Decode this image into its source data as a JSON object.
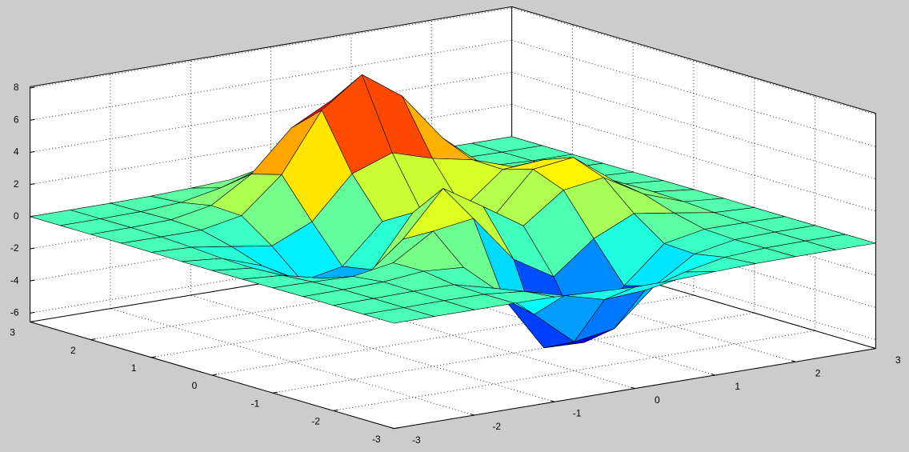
{
  "chart_data": {
    "type": "surface",
    "x": [
      -3,
      -2.5,
      -2,
      -1.5,
      -1,
      -0.5,
      0,
      0.5,
      1,
      1.5,
      2,
      2.5,
      3
    ],
    "y": [
      -3,
      -2.5,
      -2,
      -1.5,
      -1,
      -0.5,
      0,
      0.5,
      1,
      1.5,
      2,
      2.5,
      3
    ],
    "z": [
      [
        0,
        0,
        0,
        0,
        -0.03,
        -0.14,
        -0.24,
        -0.22,
        -0.11,
        -0.03,
        -0.01,
        0,
        0
      ],
      [
        0,
        0,
        0.02,
        0,
        -0.23,
        -0.91,
        -1.57,
        -1.41,
        -0.69,
        -0.18,
        -0.03,
        0,
        0
      ],
      [
        0,
        0.01,
        0.05,
        0.05,
        -0.59,
        -2.63,
        -4.75,
        -4.34,
        -2.1,
        -0.53,
        -0.06,
        0,
        0
      ],
      [
        0,
        0.01,
        0.08,
        0.33,
        0.15,
        -2.19,
        -5.68,
        -5.76,
        -2.64,
        -0.44,
        0.04,
        0.03,
        0
      ],
      [
        -0.01,
        -0.06,
        -0.13,
        0.3,
        1.86,
        2.23,
        -0.72,
        -2.22,
        -0.27,
        0.88,
        0.5,
        0.11,
        0.01
      ],
      [
        -0.03,
        -0.2,
        -0.8,
        -1.21,
        0.8,
        3.55,
        2,
        0.39,
        2.2,
        2.56,
        1.12,
        0.24,
        0.03
      ],
      [
        -0.04,
        -0.3,
        -1.33,
        -2.77,
        -1.65,
        1.48,
        0.98,
        0.38,
        2.94,
        3.27,
        1.41,
        0.3,
        0.03
      ],
      [
        -0.03,
        -0.25,
        -1.12,
        -2.49,
        -2,
        0.39,
        0.46,
        0.38,
        2.38,
        2.56,
        1.09,
        0.23,
        0.03
      ],
      [
        -0.01,
        -0.11,
        -0.48,
        -0.86,
        0.23,
        2.8,
        3.69,
        2.93,
        2.43,
        1.58,
        0.58,
        0.12,
        0.01
      ],
      [
        0,
        -0.02,
        -0.01,
        0.47,
        2.61,
        6.2,
        8,
        6.25,
        3.25,
        1.19,
        0.29,
        0.05,
        0
      ],
      [
        0,
        0.01,
        0.08,
        0.55,
        2.09,
        4.55,
        5.85,
        4.56,
        2.21,
        0.68,
        0.13,
        0.02,
        0
      ],
      [
        0,
        0,
        0.03,
        0.19,
        0.69,
        1.47,
        1.89,
        1.47,
        0.7,
        0.21,
        0.04,
        0,
        0
      ],
      [
        0,
        0,
        0,
        0.03,
        0.11,
        0.23,
        0.3,
        0.23,
        0.11,
        0.03,
        0.01,
        0,
        0
      ]
    ],
    "xlim": [
      -3,
      3
    ],
    "ylim": [
      -3,
      3
    ],
    "zlim": [
      -6.55,
      8.08
    ],
    "xticks": [
      -3,
      -2,
      -1,
      0,
      1,
      2,
      3
    ],
    "yticks": [
      -3,
      -2,
      -1,
      0,
      1,
      2,
      3
    ],
    "zticks": [
      -6,
      -4,
      -2,
      0,
      2,
      4,
      6,
      8
    ],
    "colormap": "jet",
    "edge_color": "#000000",
    "grid": true
  }
}
